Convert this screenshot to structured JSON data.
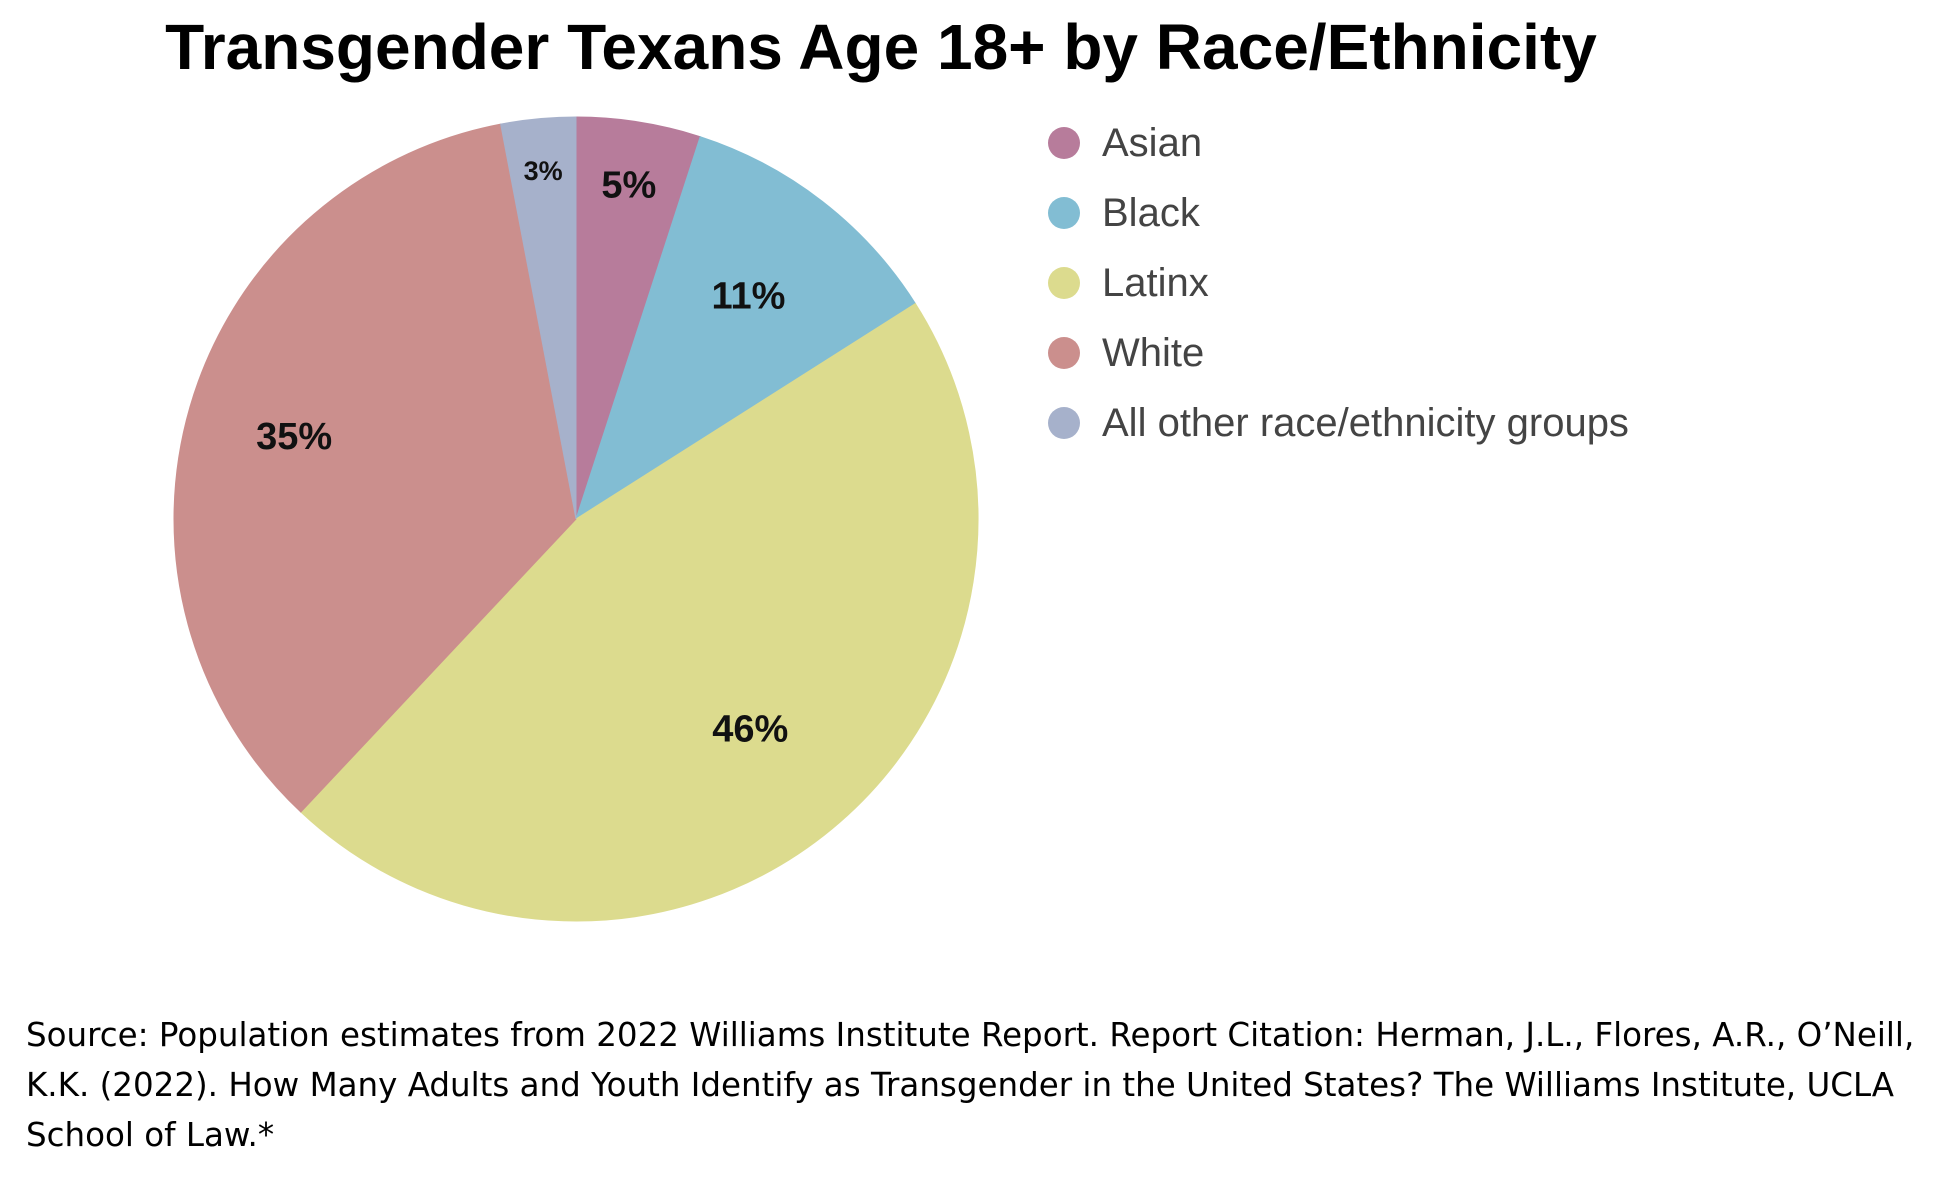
{
  "chart_data": {
    "type": "pie",
    "title": "Transgender Texans Age 18+ by Race/Ethnicity",
    "categories": [
      "Asian",
      "Black",
      "Latinx",
      "White",
      "All other race/ethnicity groups"
    ],
    "values": [
      5,
      11,
      46,
      35,
      3
    ],
    "data_labels": [
      "5%",
      "11%",
      "46%",
      "35%",
      "3%"
    ],
    "colors": [
      "#b77c9b",
      "#82bdd3",
      "#dcdb8e",
      "#cb8f8d",
      "#a6b1cb"
    ],
    "start_angle_deg": 0,
    "direction": "clockwise",
    "legend": {
      "position": "right",
      "entries": [
        "Asian",
        "Black",
        "Latinx",
        "White",
        "All other race/ethnicity groups"
      ]
    }
  },
  "footer": {
    "source": "Source: Population estimates from 2022 Williams Institute Report. Report Citation: Herman, J.L., Flores, A.R., O’Neill, K.K. (2022). How Many Adults and Youth Identify as Transgender in the United States? The Williams Institute, UCLA School of Law.*"
  }
}
